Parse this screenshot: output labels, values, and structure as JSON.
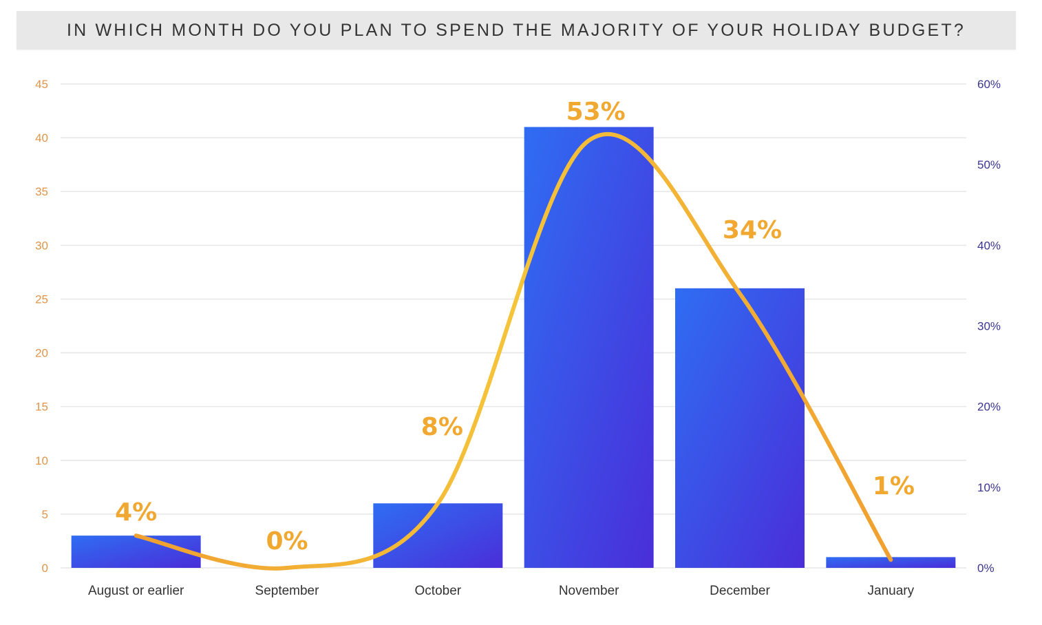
{
  "title": "IN WHICH MONTH DO YOU PLAN TO SPEND THE MAJORITY OF YOUR HOLIDAY BUDGET?",
  "colors": {
    "bar_top": "#2f6df3",
    "bar_bottom": "#4a2ed8",
    "line": "#f5c43a",
    "data_label": "#f0a830",
    "left_axis": "#e0954a",
    "right_axis": "#3a3590",
    "grid": "#e6e6e6",
    "title_bg": "#e8e8e8"
  },
  "chart_data": {
    "type": "bar",
    "title": "IN WHICH MONTH DO YOU PLAN TO SPEND THE MAJORITY OF YOUR HOLIDAY BUDGET?",
    "categories": [
      "August or earlier",
      "September",
      "October",
      "November",
      "December",
      "January"
    ],
    "values": [
      3,
      0,
      6,
      41,
      26,
      1
    ],
    "ylim": [
      0,
      45
    ],
    "yticks": [
      "0",
      "5",
      "10",
      "15",
      "20",
      "25",
      "30",
      "35",
      "40",
      "45"
    ],
    "secondary_axis": {
      "ylim": [
        0,
        60
      ],
      "ticks": [
        "0%",
        "10%",
        "20%",
        "30%",
        "40%",
        "50%",
        "60%"
      ]
    },
    "line_series": {
      "values_percent": [
        4,
        0,
        8,
        53,
        34,
        1
      ],
      "labels": [
        "4%",
        "0%",
        "8%",
        "53%",
        "34%",
        "1%"
      ],
      "smooth": true
    },
    "grid": true,
    "legend": "none"
  }
}
